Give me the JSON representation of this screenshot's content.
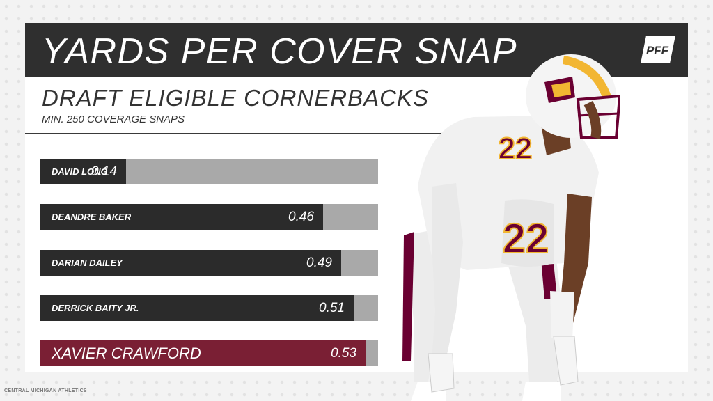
{
  "header": {
    "title": "YARDS PER COVER SNAP",
    "logo_text": "PFF"
  },
  "subtitle": "DRAFT ELIGIBLE CORNERBACKS",
  "note": "MIN. 250 COVERAGE SNAPS",
  "credit": "CENTRAL MICHIGAN ATHLETICS",
  "player_image": {
    "icon": "football-player-photo",
    "jersey_number": "22"
  },
  "colors": {
    "header_bg": "#2f2f2f",
    "bar_fill": "#2b2b2b",
    "bar_track": "#a9a9a9",
    "highlight": "#7a1f34",
    "helmet_gold": "#f2b632",
    "maroon": "#6a0032"
  },
  "chart_data": {
    "type": "bar",
    "orientation": "horizontal",
    "title": "YARDS PER COVER SNAP",
    "subtitle": "DRAFT ELIGIBLE CORNERBACKS",
    "categories": [
      "DAVID LONG",
      "DEANDRE BAKER",
      "DARIAN DAILEY",
      "DERRICK BAITY JR.",
      "XAVIER CRAWFORD"
    ],
    "values": [
      0.14,
      0.46,
      0.49,
      0.51,
      0.53
    ],
    "value_labels": [
      "0.14",
      "0.46",
      "0.49",
      "0.51",
      "0.53"
    ],
    "highlighted": "XAVIER CRAWFORD",
    "xlim": [
      0,
      0.55
    ],
    "grid": false,
    "legend": "none"
  }
}
